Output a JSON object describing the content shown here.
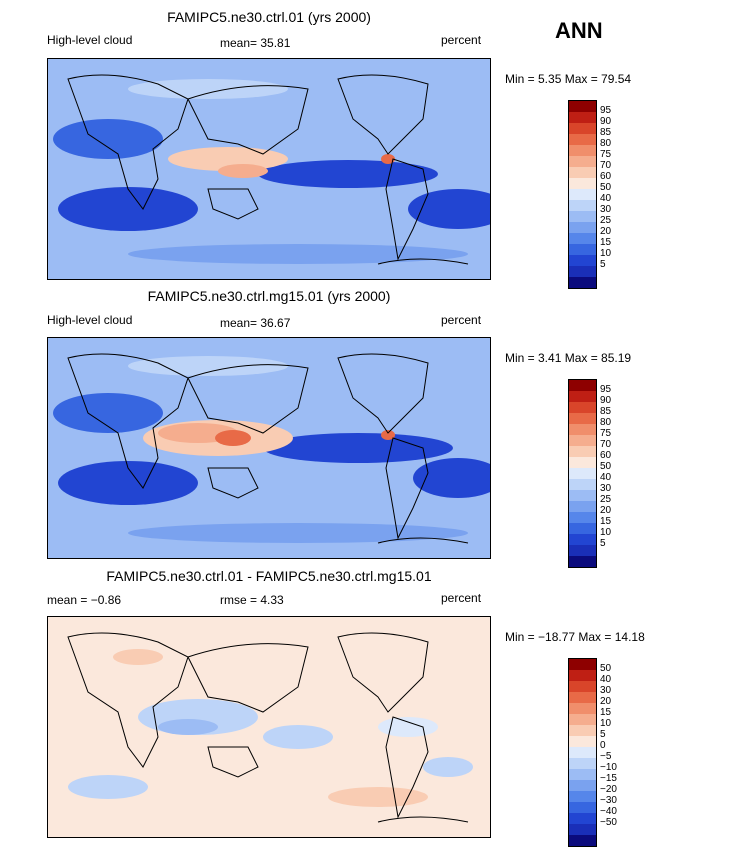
{
  "season": "ANN",
  "colors": {
    "scale": [
      "#0b0b7d",
      "#1a2fb8",
      "#2245d2",
      "#3766e0",
      "#5686ea",
      "#7aa2ef",
      "#9cbcf4",
      "#bdd4f8",
      "#dde9fb",
      "#fbe8dc",
      "#f9ccb3",
      "#f5ad8e",
      "#f08e6b",
      "#e86a47",
      "#d9452a",
      "#bf1f14",
      "#8e0000"
    ]
  },
  "panels": [
    {
      "title": "FAMIPC5.ne30.ctrl.01 (yrs 2000)",
      "left_label": "High-level cloud",
      "center_label": "mean=  35.81",
      "right_label": "percent",
      "min_max": "Min =    5.35  Max =   79.54",
      "ticks": [
        "95",
        "90",
        "85",
        "80",
        "75",
        "70",
        "60",
        "50",
        "40",
        "30",
        "25",
        "20",
        "15",
        "10",
        "5"
      ]
    },
    {
      "title": "FAMIPC5.ne30.ctrl.mg15.01 (yrs 2000)",
      "left_label": "High-level cloud",
      "center_label": "mean=  36.67",
      "right_label": "percent",
      "min_max": "Min =    3.41  Max =   85.19",
      "ticks": [
        "95",
        "90",
        "85",
        "80",
        "75",
        "70",
        "60",
        "50",
        "40",
        "30",
        "25",
        "20",
        "15",
        "10",
        "5"
      ]
    },
    {
      "title": "FAMIPC5.ne30.ctrl.01 - FAMIPC5.ne30.ctrl.mg15.01",
      "left_label": "mean =  −0.86",
      "center_label": "rmse =    4.33",
      "right_label": "percent",
      "min_max": "Min = −18.77  Max =   14.18",
      "ticks": [
        "50",
        "40",
        "30",
        "20",
        "15",
        "10",
        "5",
        "0",
        "−5",
        "−10",
        "−15",
        "−20",
        "−30",
        "−40",
        "−50"
      ]
    }
  ]
}
